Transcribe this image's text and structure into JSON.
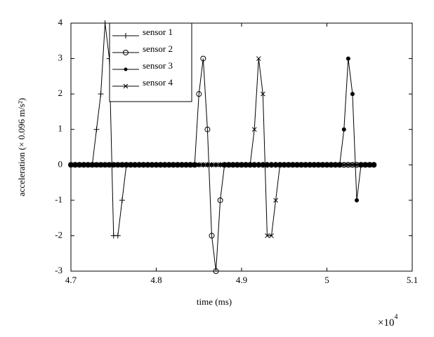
{
  "chart_data": {
    "type": "line",
    "xlabel": "time (ms)",
    "x_multiplier": {
      "base": "×10",
      "exponent": "4"
    },
    "ylabel": "acceleration (× 0.096 m/s²)",
    "x": [
      4.7,
      4.705,
      4.71,
      4.715,
      4.72,
      4.725,
      4.73,
      4.735,
      4.74,
      4.745,
      4.75,
      4.755,
      4.76,
      4.765,
      4.77,
      4.775,
      4.78,
      4.785,
      4.79,
      4.795,
      4.8,
      4.805,
      4.81,
      4.815,
      4.82,
      4.825,
      4.83,
      4.835,
      4.84,
      4.845,
      4.85,
      4.855,
      4.86,
      4.865,
      4.87,
      4.875,
      4.88,
      4.885,
      4.89,
      4.895,
      4.9,
      4.905,
      4.91,
      4.915,
      4.92,
      4.925,
      4.93,
      4.935,
      4.94,
      4.945,
      4.95,
      4.955,
      4.96,
      4.965,
      4.97,
      4.975,
      4.98,
      4.985,
      4.99,
      4.995,
      5,
      5.005,
      5.01,
      5.015,
      5.02,
      5.025,
      5.03,
      5.035,
      5.04,
      5.045,
      5.05,
      5.055
    ],
    "series": [
      {
        "name": "sensor 1",
        "color": "#000000",
        "marker": "plus",
        "values": [
          0,
          0,
          0,
          0,
          0,
          0,
          1,
          2,
          4,
          3,
          -2,
          -2,
          -1,
          0,
          0,
          0,
          0,
          0,
          0,
          0,
          0,
          0,
          0,
          0,
          0,
          0,
          0,
          0,
          0,
          0,
          0,
          0,
          0,
          0,
          0,
          0,
          0,
          0,
          0,
          0,
          0,
          0,
          0,
          0,
          0,
          0,
          0,
          0,
          0,
          0,
          0,
          0,
          0,
          0,
          0,
          0,
          0,
          0,
          0,
          0,
          0,
          0,
          0,
          0,
          0,
          0,
          0,
          0,
          0,
          0,
          0,
          0
        ]
      },
      {
        "name": "sensor 2",
        "color": "#000000",
        "marker": "circle",
        "values": [
          0,
          0,
          0,
          0,
          0,
          0,
          0,
          0,
          0,
          0,
          0,
          0,
          0,
          0,
          0,
          0,
          0,
          0,
          0,
          0,
          0,
          0,
          0,
          0,
          0,
          0,
          0,
          0,
          0,
          0,
          2,
          3,
          1,
          -2,
          -3,
          -1,
          0,
          0,
          0,
          0,
          0,
          0,
          0,
          0,
          0,
          0,
          0,
          0,
          0,
          0,
          0,
          0,
          0,
          0,
          0,
          0,
          0,
          0,
          0,
          0,
          0,
          0,
          0,
          0,
          0,
          0,
          0,
          0,
          0,
          0,
          0,
          0
        ]
      },
      {
        "name": "sensor 3",
        "color": "#000000",
        "marker": "dot",
        "values": [
          0,
          0,
          0,
          0,
          0,
          0,
          0,
          0,
          0,
          0,
          0,
          0,
          0,
          0,
          0,
          0,
          0,
          0,
          0,
          0,
          0,
          0,
          0,
          0,
          0,
          0,
          0,
          0,
          0,
          0,
          0,
          0,
          0,
          0,
          0,
          0,
          0,
          0,
          0,
          0,
          0,
          0,
          0,
          0,
          0,
          0,
          0,
          0,
          0,
          0,
          0,
          0,
          0,
          0,
          0,
          0,
          0,
          0,
          0,
          0,
          0,
          0,
          0,
          0,
          1,
          3,
          2,
          -1,
          0,
          0,
          0,
          0
        ]
      },
      {
        "name": "sensor 4",
        "color": "#000000",
        "marker": "cross",
        "values": [
          0,
          0,
          0,
          0,
          0,
          0,
          0,
          0,
          0,
          0,
          0,
          0,
          0,
          0,
          0,
          0,
          0,
          0,
          0,
          0,
          0,
          0,
          0,
          0,
          0,
          0,
          0,
          0,
          0,
          0,
          0,
          0,
          0,
          0,
          0,
          0,
          0,
          0,
          0,
          0,
          0,
          0,
          0,
          1,
          3,
          2,
          -2,
          -2,
          -1,
          0,
          0,
          0,
          0,
          0,
          0,
          0,
          0,
          0,
          0,
          0,
          0,
          0,
          0,
          0,
          0,
          0,
          0,
          0,
          0,
          0,
          0,
          0
        ]
      }
    ],
    "xlim": [
      4.7,
      5.1
    ],
    "xticks": [
      4.7,
      4.8,
      4.9,
      5,
      5.1
    ],
    "ylim": [
      -3,
      4
    ],
    "yticks": [
      -3,
      -2,
      -1,
      0,
      1,
      2,
      3,
      4
    ],
    "legend": "upper-left",
    "grid": false
  }
}
